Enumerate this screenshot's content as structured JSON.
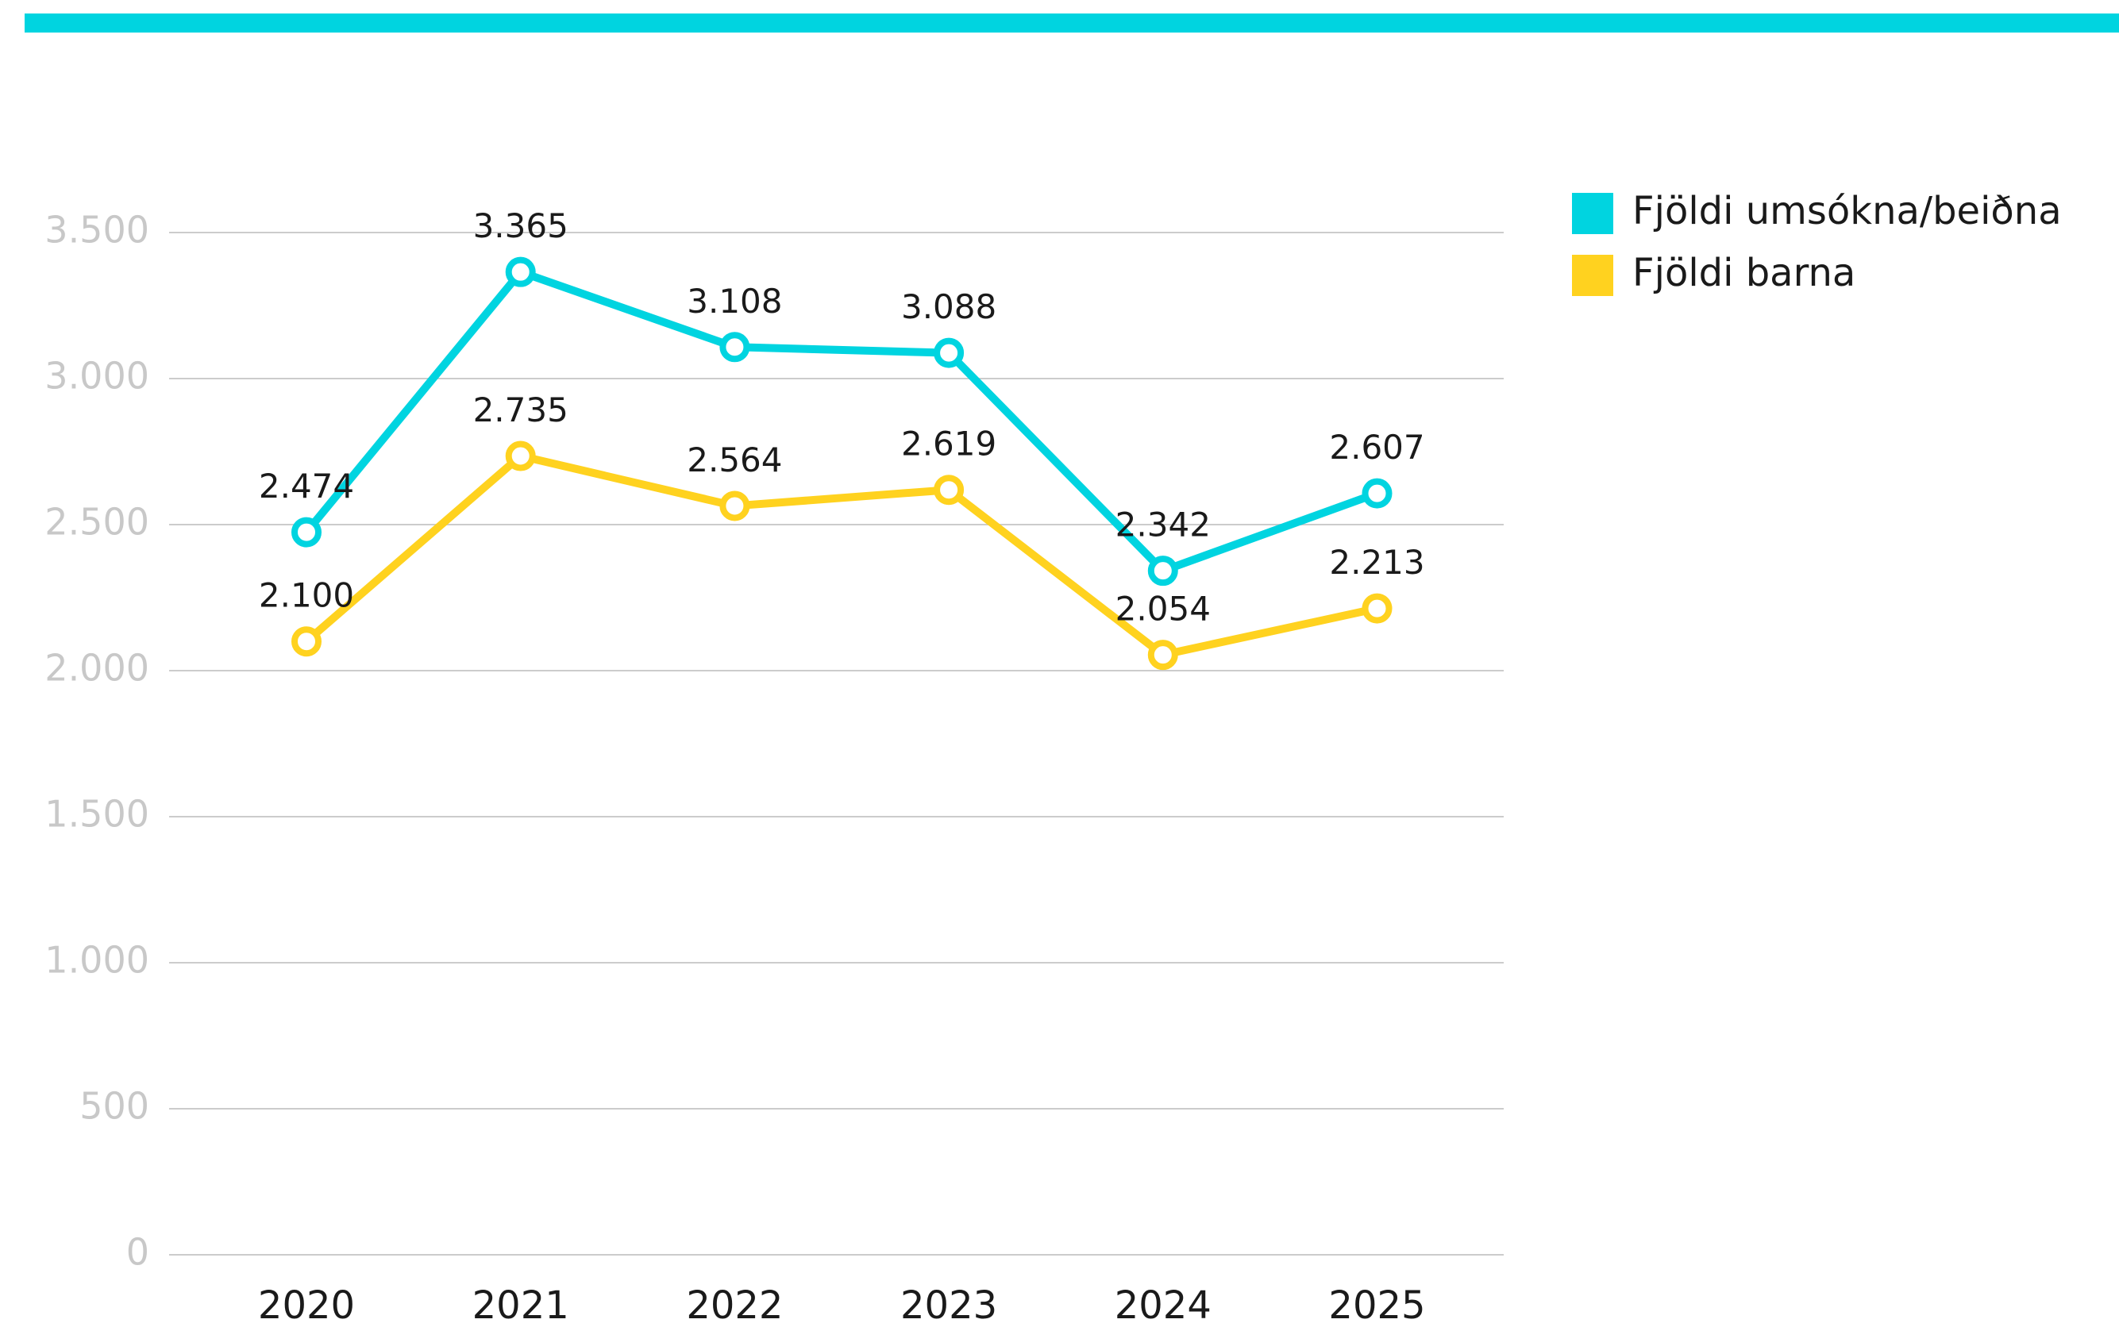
{
  "chart_data": {
    "type": "line",
    "categories": [
      "2020",
      "2021",
      "2022",
      "2023",
      "2024",
      "2025"
    ],
    "series": [
      {
        "name": "Fjöldi umsókna/beiðna",
        "color": "#00d4e0",
        "values": [
          2474,
          3365,
          3108,
          3088,
          2342,
          2607
        ],
        "value_labels": [
          "2.474",
          "3.365",
          "3.108",
          "3.088",
          "2.342",
          "2.607"
        ]
      },
      {
        "name": "Fjöldi barna",
        "color": "#ffd21f",
        "values": [
          2100,
          2735,
          2564,
          2619,
          2054,
          2213
        ],
        "value_labels": [
          "2.100",
          "2.735",
          "2.564",
          "2.619",
          "2.054",
          "2.213"
        ]
      }
    ],
    "ylim": [
      0,
      3500
    ],
    "yticks": [
      0,
      500,
      {
        "value": 1000,
        "label": "1.000"
      },
      {
        "value": 1500,
        "label": "1.500"
      },
      {
        "value": 2000,
        "label": "2.000"
      },
      {
        "value": 2500,
        "label": "2.500"
      },
      {
        "value": 3000,
        "label": "3.000"
      },
      {
        "value": 3500,
        "label": "3.500"
      }
    ],
    "grid": true,
    "legend": "right"
  }
}
